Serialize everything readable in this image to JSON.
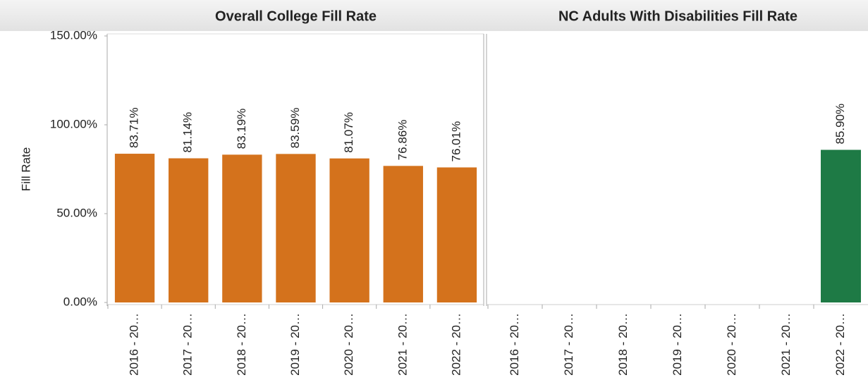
{
  "chart_data": [
    {
      "type": "bar",
      "title": "Overall College Fill Rate",
      "y_label": "Fill Rate",
      "categories": [
        "2016 - 20…",
        "2017 - 20…",
        "2018 - 20…",
        "2019 - 20…",
        "2020 - 20…",
        "2021 - 20…",
        "2022 - 20…"
      ],
      "values": [
        83.71,
        81.14,
        83.19,
        83.59,
        81.07,
        76.86,
        76.01
      ],
      "value_labels": [
        "83.71%",
        "81.14%",
        "83.19%",
        "83.59%",
        "81.07%",
        "76.86%",
        "76.01%"
      ],
      "color": "#d4721c",
      "ylim": [
        0,
        150
      ],
      "yticks": [
        {
          "value": 0,
          "label": "0.00%"
        },
        {
          "value": 50,
          "label": "50.00%"
        },
        {
          "value": 100,
          "label": "100.00%"
        },
        {
          "value": 150,
          "label": "150.00%"
        }
      ]
    },
    {
      "type": "bar",
      "title": "NC Adults With Disabilities Fill Rate",
      "categories": [
        "2016 - 20…",
        "2017 - 20…",
        "2018 - 20…",
        "2019 - 20…",
        "2020 - 20…",
        "2021 - 20…",
        "2022 - 20…"
      ],
      "values": [
        null,
        null,
        null,
        null,
        null,
        null,
        85.9
      ],
      "value_labels": [
        null,
        null,
        null,
        null,
        null,
        null,
        "85.90%"
      ],
      "color": "#1e7a45",
      "ylim": [
        0,
        150
      ]
    }
  ]
}
